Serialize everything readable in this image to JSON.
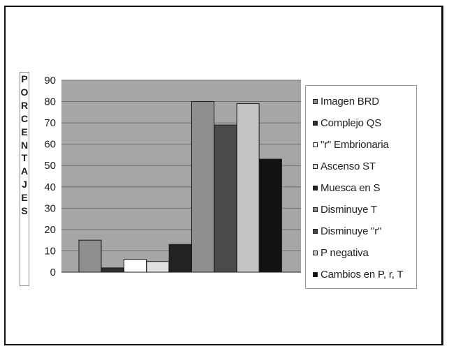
{
  "chart_data": {
    "type": "bar",
    "ylabel": "PORCENTAJES",
    "ylim": [
      0,
      90
    ],
    "yticks": [
      "0",
      "10",
      "20",
      "30",
      "40",
      "50",
      "60",
      "70",
      "80",
      "90"
    ],
    "grid": true,
    "legend_position": "right",
    "plot_background": "#a6a6a6",
    "series": [
      {
        "name": "Imagen BRD",
        "value": 15,
        "color": "#8f8f8f"
      },
      {
        "name": "Complejo QS",
        "value": 2,
        "color": "#2e2e2e"
      },
      {
        "name": "\"r\" Embrionaria",
        "value": 6,
        "color": "#ffffff"
      },
      {
        "name": "Ascenso ST",
        "value": 5,
        "color": "#e0e0e0"
      },
      {
        "name": "Muesca en S",
        "value": 13,
        "color": "#222222"
      },
      {
        "name": "Disminuye T",
        "value": 80,
        "color": "#8f8f8f"
      },
      {
        "name": "Disminuye \"r\"",
        "value": 69,
        "color": "#4a4a4a"
      },
      {
        "name": "P negativa",
        "value": 79,
        "color": "#c4c4c4"
      },
      {
        "name": "Cambios en P, r, T",
        "value": 53,
        "color": "#111111"
      }
    ]
  }
}
